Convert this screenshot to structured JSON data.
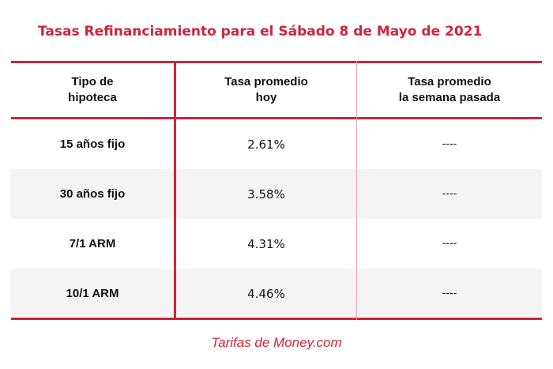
{
  "title": "Tasas Refinanciamiento para el Sábado 8 de Mayo de 2021",
  "table": {
    "headers": [
      [
        "Tipo de",
        "hipoteca"
      ],
      [
        "Tasa promedio",
        "hoy"
      ],
      [
        "Tasa promedio",
        "la semana pasada"
      ]
    ],
    "rows": [
      {
        "type": "15 años fijo",
        "today": "2.61%",
        "last_week": "----"
      },
      {
        "type": "30 años fijo",
        "today": "3.58%",
        "last_week": "----"
      },
      {
        "type": "7/1 ARM",
        "today": "4.31%",
        "last_week": "----"
      },
      {
        "type": "10/1 ARM",
        "today": "4.46%",
        "last_week": "----"
      }
    ]
  },
  "footer": "Tarifas de Money.com",
  "colors": {
    "accent": "#d0243a",
    "row_shade": "#f4f4f4"
  }
}
